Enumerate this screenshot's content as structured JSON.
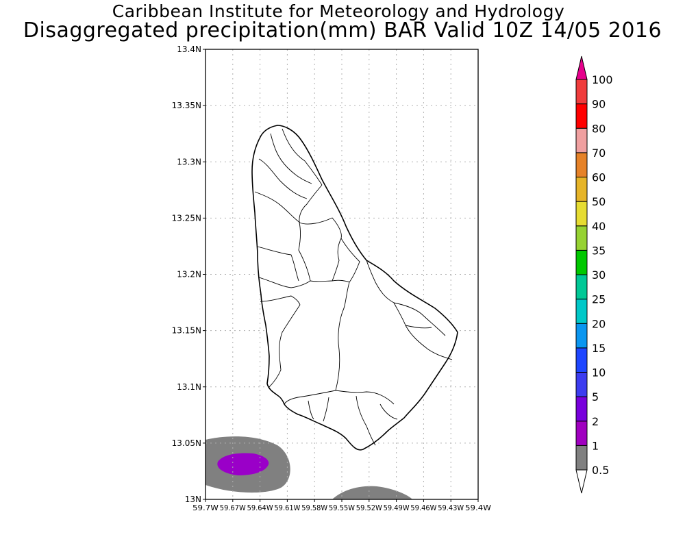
{
  "title": {
    "line1": "Caribbean Institute for Meteorology and Hydrology",
    "line2": "Disaggregated precipitation(mm) BAR Valid 10Z 14/05 2016"
  },
  "map": {
    "lat_ticks": [
      "13.4N",
      "13.35N",
      "13.3N",
      "13.25N",
      "13.2N",
      "13.15N",
      "13.1N",
      "13.05N",
      "13N"
    ],
    "lon_ticks": [
      "59.7W",
      "59.67W",
      "59.64W",
      "59.61W",
      "59.58W",
      "59.55W",
      "59.52W",
      "59.49W",
      "59.46W",
      "59.43W",
      "59.4W"
    ],
    "colors": {
      "coast": "#000000",
      "grid": "#b0b0b0",
      "precip_low": "#808080",
      "precip_mid": "#9a00c8"
    }
  },
  "colorbar": {
    "levels": [
      "0.5",
      "1",
      "2",
      "5",
      "10",
      "15",
      "20",
      "25",
      "30",
      "35",
      "40",
      "50",
      "60",
      "70",
      "80",
      "90",
      "100"
    ],
    "colors": [
      "#808080",
      "#a000c0",
      "#7800dc",
      "#3c3cf0",
      "#1e46ff",
      "#0a96f0",
      "#00c8c8",
      "#00c896",
      "#00c800",
      "#96d232",
      "#e6dc32",
      "#e6b428",
      "#e68228",
      "#f0a0a0",
      "#ff0000",
      "#f03c3c",
      "#e6008c"
    ]
  }
}
